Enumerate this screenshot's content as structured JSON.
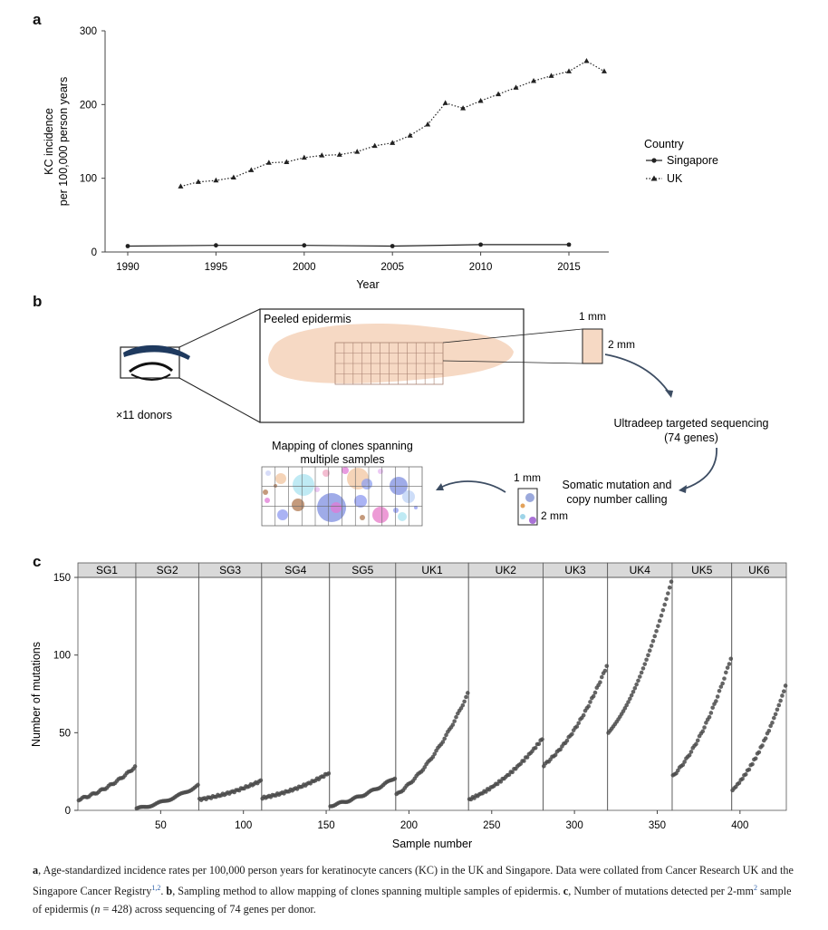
{
  "panels": {
    "a": "a",
    "b": "b",
    "c": "c"
  },
  "chart_a": {
    "type": "line",
    "ylabel_line1": "KC incidence",
    "ylabel_line2": "per 100,000 person years",
    "xlabel": "Year",
    "xlim": [
      1988,
      2018
    ],
    "ylim": [
      0,
      300
    ],
    "xticks": [
      1990,
      1995,
      2000,
      2005,
      2010,
      2015
    ],
    "yticks": [
      0,
      100,
      200,
      300
    ],
    "legend_title": "Country",
    "series": [
      {
        "name": "Singapore",
        "marker": "circle",
        "style": "solid",
        "x": [
          1990,
          1995,
          2000,
          2005,
          2010,
          2015
        ],
        "y": [
          8,
          9,
          9,
          8,
          10,
          10
        ]
      },
      {
        "name": "UK",
        "marker": "triangle",
        "style": "dotted",
        "x": [
          1993,
          1994,
          1995,
          1996,
          1997,
          1998,
          1999,
          2000,
          2001,
          2002,
          2003,
          2004,
          2005,
          2006,
          2007,
          2008,
          2009,
          2010,
          2011,
          2012,
          2013,
          2014,
          2015,
          2016,
          2017
        ],
        "y": [
          89,
          95,
          97,
          101,
          111,
          121,
          122,
          128,
          131,
          132,
          136,
          144,
          148,
          158,
          173,
          202,
          195,
          205,
          214,
          223,
          232,
          239,
          245,
          259,
          245
        ]
      }
    ]
  },
  "diagram_b": {
    "peeled_label": "Peeled epidermis",
    "donors_label": "×11 donors",
    "size_1mm_top": "1 mm",
    "size_2mm_top": "2 mm",
    "step_seq_line1": "Ultradeep targeted sequencing",
    "step_seq_line2": "(74 genes)",
    "step_call_line1": "Somatic mutation and",
    "step_call_line2": "copy number calling",
    "size_1mm_bottom": "1 mm",
    "size_2mm_bottom": "2 mm",
    "mapping_line1": "Mapping of clones spanning",
    "mapping_line2": "multiple samples"
  },
  "chart_c": {
    "type": "scatter",
    "ylabel": "Number of mutations",
    "xlabel": "Sample number",
    "ylim": [
      0,
      150
    ],
    "xlim": [
      0,
      428
    ],
    "yticks": [
      0,
      50,
      100,
      150
    ],
    "xticks": [
      50,
      100,
      150,
      200,
      250,
      300,
      350,
      400
    ],
    "donors": [
      {
        "name": "SG1",
        "start": 1,
        "end": 35,
        "min": 7,
        "max": 28
      },
      {
        "name": "SG2",
        "start": 36,
        "end": 73,
        "min": 1,
        "max": 16
      },
      {
        "name": "SG3",
        "start": 74,
        "end": 111,
        "min": 7,
        "max": 19
      },
      {
        "name": "SG4",
        "start": 112,
        "end": 152,
        "min": 8,
        "max": 24
      },
      {
        "name": "SG5",
        "start": 153,
        "end": 192,
        "min": 3,
        "max": 21
      },
      {
        "name": "UK1",
        "start": 193,
        "end": 236,
        "min": 10,
        "max": 75
      },
      {
        "name": "UK2",
        "start": 237,
        "end": 281,
        "min": 7,
        "max": 46
      },
      {
        "name": "UK3",
        "start": 282,
        "end": 320,
        "min": 29,
        "max": 93
      },
      {
        "name": "UK4",
        "start": 321,
        "end": 359,
        "min": 50,
        "max": 147
      },
      {
        "name": "UK5",
        "start": 360,
        "end": 395,
        "min": 22,
        "max": 98
      },
      {
        "name": "UK6",
        "start": 396,
        "end": 428,
        "min": 13,
        "max": 80
      }
    ]
  },
  "caption": {
    "a_letter": "a",
    "a_text1": ", Age-standardized incidence rates per 100,000 person years for keratinocyte cancers (KC) in the UK and Singapore. Data were collated from Cancer Research UK and the Singapore Cancer Registry",
    "refs": "1,2",
    "a_text2": ". ",
    "b_letter": "b",
    "b_text": ", Sampling method to allow mapping of clones spanning multiple samples of epidermis. ",
    "c_letter": "c",
    "c_text1": ", Number of mutations detected per 2-mm",
    "c_sup": "2",
    "c_text2": " sample of epidermis (",
    "c_n": "n",
    "c_text3": " = 428) across sequencing of 74 genes per donor."
  },
  "colors": {
    "line": "#222222",
    "grid": "#888888",
    "tissue": "#f6d9c4",
    "donor_header": "#d9d9d9",
    "arrow": "#3d4d63",
    "eyebrow": "#1f3a5f",
    "dot": "#4a4a4a"
  }
}
